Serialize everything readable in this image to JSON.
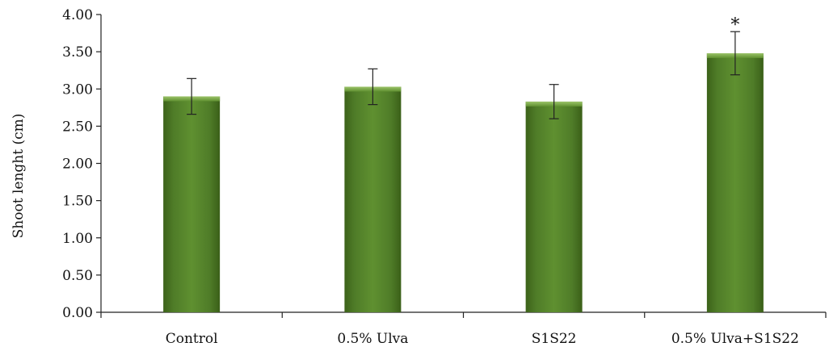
{
  "chart_data": {
    "type": "bar",
    "title": "",
    "xlabel": "",
    "ylabel": "Shoot lenght (cm)",
    "ylim": [
      0,
      4
    ],
    "yticks": [
      "0.00",
      "0.50",
      "1.00",
      "1.50",
      "2.00",
      "2.50",
      "3.00",
      "3.50",
      "4.00"
    ],
    "categories": [
      "Control",
      "0.5% Ulva",
      "S1S22",
      "0.5% Ulva+S1S22"
    ],
    "values": [
      2.9,
      3.03,
      2.83,
      3.48
    ],
    "errors": [
      0.24,
      0.24,
      0.23,
      0.29
    ],
    "annotations": [
      "",
      "",
      "",
      "*"
    ],
    "grid": false,
    "legend": "none",
    "bar_color": "#4e7a27"
  }
}
